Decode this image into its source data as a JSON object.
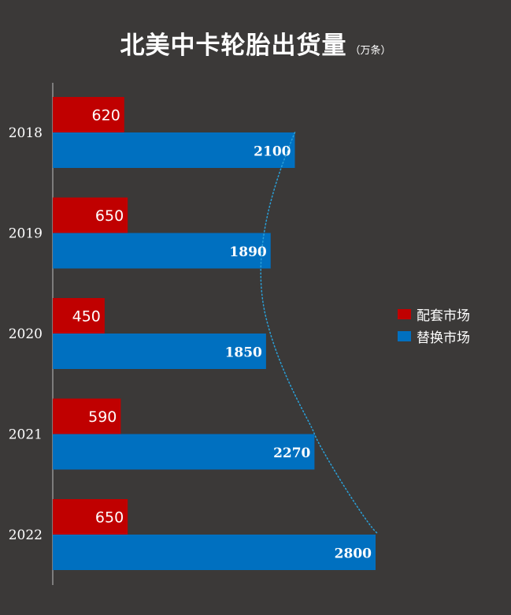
{
  "title": "北美中卡轮胎出货量",
  "unit": "（万条）",
  "chart_data": {
    "type": "bar",
    "orientation": "horizontal",
    "categories": [
      "2018",
      "2019",
      "2020",
      "2021",
      "2022"
    ],
    "series": [
      {
        "name": "配套市场",
        "color": "#c00000",
        "values": [
          620,
          650,
          450,
          590,
          650
        ]
      },
      {
        "name": "替换市场",
        "color": "#0070c0",
        "values": [
          2100,
          1890,
          1850,
          2270,
          2800
        ]
      }
    ],
    "xlim": [
      0,
      3000
    ],
    "grid": false,
    "legend_position": "right",
    "annotation": "dotted curve tracing the ends of the replacement-market bars"
  }
}
